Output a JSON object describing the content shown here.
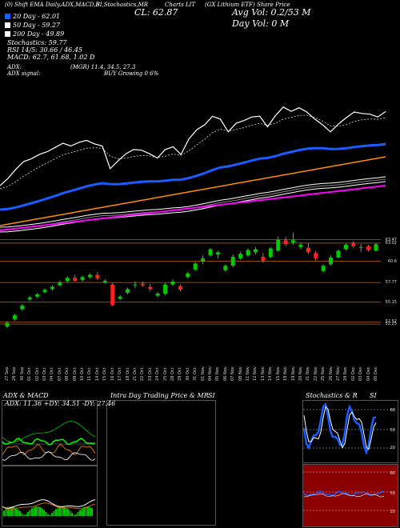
{
  "header": {
    "line1": "(0) Shift EMA Daily.ADX,MACD,B",
    "line1b": "SI,Stochastics,MR",
    "line1c": "CL: 62.87",
    "line1d": "Charts LIT",
    "line1e": "(GX Lithium ETF) Share Price",
    "avg_vol": "Avg Vol: 0.2/53 M",
    "day_vol": "Day Vol: 0   M",
    "close": "CL: 62.87"
  },
  "legend": [
    {
      "label": "20 Day - 62.01",
      "color": "#1a5cff"
    },
    {
      "label": "50 Day - 59.27",
      "color": "#ffffff"
    },
    {
      "label": "200 Day - 49.89",
      "color": "#ffffff"
    },
    {
      "label": "Stochastics: 59.77",
      "color": null
    },
    {
      "label": "RSI 14/5: 30.66 / 46.45",
      "color": null
    },
    {
      "label": "MACD: 62.7, 61.68, 1.02  D",
      "color": null
    }
  ],
  "indicators": {
    "adx": "ADX:",
    "adx_signal": "ADX signal:",
    "mgr": "(MGR) 11.4, 34.5, 27.3",
    "buy_growing": "BUY Growing 0 6%"
  },
  "panels": {
    "adx_macd_title": "ADX  & MACD",
    "adx_values": "ADX: 11.36  +DY: 34.51 -DY: 27.46",
    "intraday_title": "Intra Day Trading Price  & MR",
    "si_title": "SI",
    "stoch_title": "Stochastics & R",
    "si2_title": "SI",
    "stoch_levels": [
      "80",
      "50",
      "20"
    ],
    "rsi_levels": [
      "80",
      "50",
      "20"
    ]
  },
  "colors": {
    "up": "#00cc00",
    "down": "#ff2020",
    "ema20": "#1a5cff",
    "ema100": "#ff8c00",
    "ema200": "#ff00ff",
    "gridline": "#cc6600",
    "rsi_bg": "#8b0000"
  },
  "chart_data": {
    "type": "candlestick",
    "y_axis_labels": [
      "63.47",
      "63.02",
      "60.6",
      "57.77",
      "55.15",
      "52.52",
      "52.23"
    ],
    "x_labels": [
      "27 Sep",
      "28 Sep",
      "30 Sep",
      "01 Oct",
      "02 Oct",
      "03 Oct",
      "04 Oct",
      "07 Oct",
      "08 Oct",
      "09 Oct",
      "10 Oct",
      "11 Oct",
      "14 Oct",
      "15 Oct",
      "16 Oct",
      "17 Oct",
      "18 Oct",
      "21 Oct",
      "22 Oct",
      "23 Oct",
      "24 Oct",
      "25 Oct",
      "28 Oct",
      "29 Oct",
      "30 Oct",
      "31 Oct",
      "01 Nov",
      "04 Nov",
      "05 Nov",
      "06 Nov",
      "07 Nov",
      "08 Nov",
      "11 Nov",
      "12 Nov",
      "13 Nov",
      "14 Nov",
      "15 Nov",
      "18 Nov",
      "19 Nov",
      "20 Nov",
      "21 Nov",
      "22 Nov",
      "25 Nov",
      "26 Nov",
      "27 Nov",
      "29 Nov",
      "02 Dec",
      "03 Dec",
      "04 Dec",
      "05 Dec"
    ],
    "candles": [
      {
        "o": 51.9,
        "h": 52.6,
        "l": 51.7,
        "c": 52.4
      },
      {
        "o": 52.9,
        "h": 53.6,
        "l": 52.7,
        "c": 53.4
      },
      {
        "o": 54.2,
        "h": 54.9,
        "l": 54.0,
        "c": 54.7
      },
      {
        "o": 55.5,
        "h": 56.0,
        "l": 55.3,
        "c": 55.8
      },
      {
        "o": 55.9,
        "h": 56.4,
        "l": 55.7,
        "c": 56.2
      },
      {
        "o": 56.5,
        "h": 57.0,
        "l": 56.3,
        "c": 56.8
      },
      {
        "o": 56.9,
        "h": 57.4,
        "l": 56.7,
        "c": 57.2
      },
      {
        "o": 57.4,
        "h": 58.0,
        "l": 57.2,
        "c": 57.8
      },
      {
        "o": 58.0,
        "h": 58.6,
        "l": 57.8,
        "c": 58.4
      },
      {
        "o": 58.4,
        "h": 58.8,
        "l": 57.9,
        "c": 58.0
      },
      {
        "o": 58.1,
        "h": 58.7,
        "l": 57.9,
        "c": 58.5
      },
      {
        "o": 58.5,
        "h": 59.0,
        "l": 58.3,
        "c": 58.8
      },
      {
        "o": 58.8,
        "h": 59.2,
        "l": 58.1,
        "c": 58.3
      },
      {
        "o": 57.8,
        "h": 58.2,
        "l": 57.6,
        "c": 58.0
      },
      {
        "o": 57.5,
        "h": 57.7,
        "l": 54.6,
        "c": 54.8
      },
      {
        "o": 55.6,
        "h": 56.1,
        "l": 55.4,
        "c": 55.9
      },
      {
        "o": 56.4,
        "h": 57.1,
        "l": 56.2,
        "c": 56.9
      },
      {
        "o": 57.4,
        "h": 57.9,
        "l": 57.0,
        "c": 57.5
      },
      {
        "o": 57.6,
        "h": 57.9,
        "l": 57.2,
        "c": 57.4
      },
      {
        "o": 57.2,
        "h": 57.6,
        "l": 56.6,
        "c": 56.9
      },
      {
        "o": 56.0,
        "h": 56.5,
        "l": 55.8,
        "c": 56.3
      },
      {
        "o": 56.3,
        "h": 57.7,
        "l": 56.1,
        "c": 57.5
      },
      {
        "o": 57.5,
        "h": 58.2,
        "l": 57.3,
        "c": 57.9
      },
      {
        "o": 57.3,
        "h": 57.5,
        "l": 56.6,
        "c": 56.8
      },
      {
        "o": 58.5,
        "h": 59.2,
        "l": 58.3,
        "c": 59.0
      },
      {
        "o": 59.5,
        "h": 60.5,
        "l": 59.3,
        "c": 60.3
      },
      {
        "o": 60.6,
        "h": 61.4,
        "l": 60.2,
        "c": 61.0
      },
      {
        "o": 61.4,
        "h": 62.4,
        "l": 61.2,
        "c": 62.2
      },
      {
        "o": 61.5,
        "h": 62.0,
        "l": 61.0,
        "c": 61.8
      },
      {
        "o": 59.4,
        "h": 60.2,
        "l": 59.2,
        "c": 60.0
      },
      {
        "o": 60.0,
        "h": 61.5,
        "l": 59.8,
        "c": 61.2
      },
      {
        "o": 61.0,
        "h": 61.9,
        "l": 60.8,
        "c": 61.6
      },
      {
        "o": 61.4,
        "h": 62.3,
        "l": 61.2,
        "c": 62.1
      },
      {
        "o": 61.8,
        "h": 62.5,
        "l": 61.5,
        "c": 62.2
      },
      {
        "o": 61.2,
        "h": 61.7,
        "l": 60.4,
        "c": 60.7
      },
      {
        "o": 61.2,
        "h": 62.5,
        "l": 61.0,
        "c": 62.3
      },
      {
        "o": 62.0,
        "h": 63.9,
        "l": 61.9,
        "c": 63.5
      },
      {
        "o": 63.4,
        "h": 63.9,
        "l": 62.6,
        "c": 62.9
      },
      {
        "o": 63.1,
        "h": 64.4,
        "l": 62.8,
        "c": 63.4
      },
      {
        "o": 62.5,
        "h": 63.1,
        "l": 62.2,
        "c": 62.8
      },
      {
        "o": 62.4,
        "h": 63.0,
        "l": 61.6,
        "c": 61.8
      },
      {
        "o": 61.7,
        "h": 62.0,
        "l": 60.7,
        "c": 61.0
      },
      {
        "o": 59.3,
        "h": 60.2,
        "l": 59.1,
        "c": 60.0
      },
      {
        "o": 60.2,
        "h": 61.4,
        "l": 60.0,
        "c": 61.1
      },
      {
        "o": 61.1,
        "h": 62.2,
        "l": 61.0,
        "c": 62.0
      },
      {
        "o": 62.2,
        "h": 63.0,
        "l": 62.0,
        "c": 62.8
      },
      {
        "o": 63.0,
        "h": 63.3,
        "l": 62.4,
        "c": 62.6
      },
      {
        "o": 62.4,
        "h": 62.9,
        "l": 61.8,
        "c": 62.5
      },
      {
        "o": 62.6,
        "h": 62.8,
        "l": 61.9,
        "c": 62.1
      },
      {
        "o": 62.0,
        "h": 63.0,
        "l": 61.9,
        "c": 62.87
      }
    ],
    "ylim": [
      51.5,
      64.5
    ]
  }
}
